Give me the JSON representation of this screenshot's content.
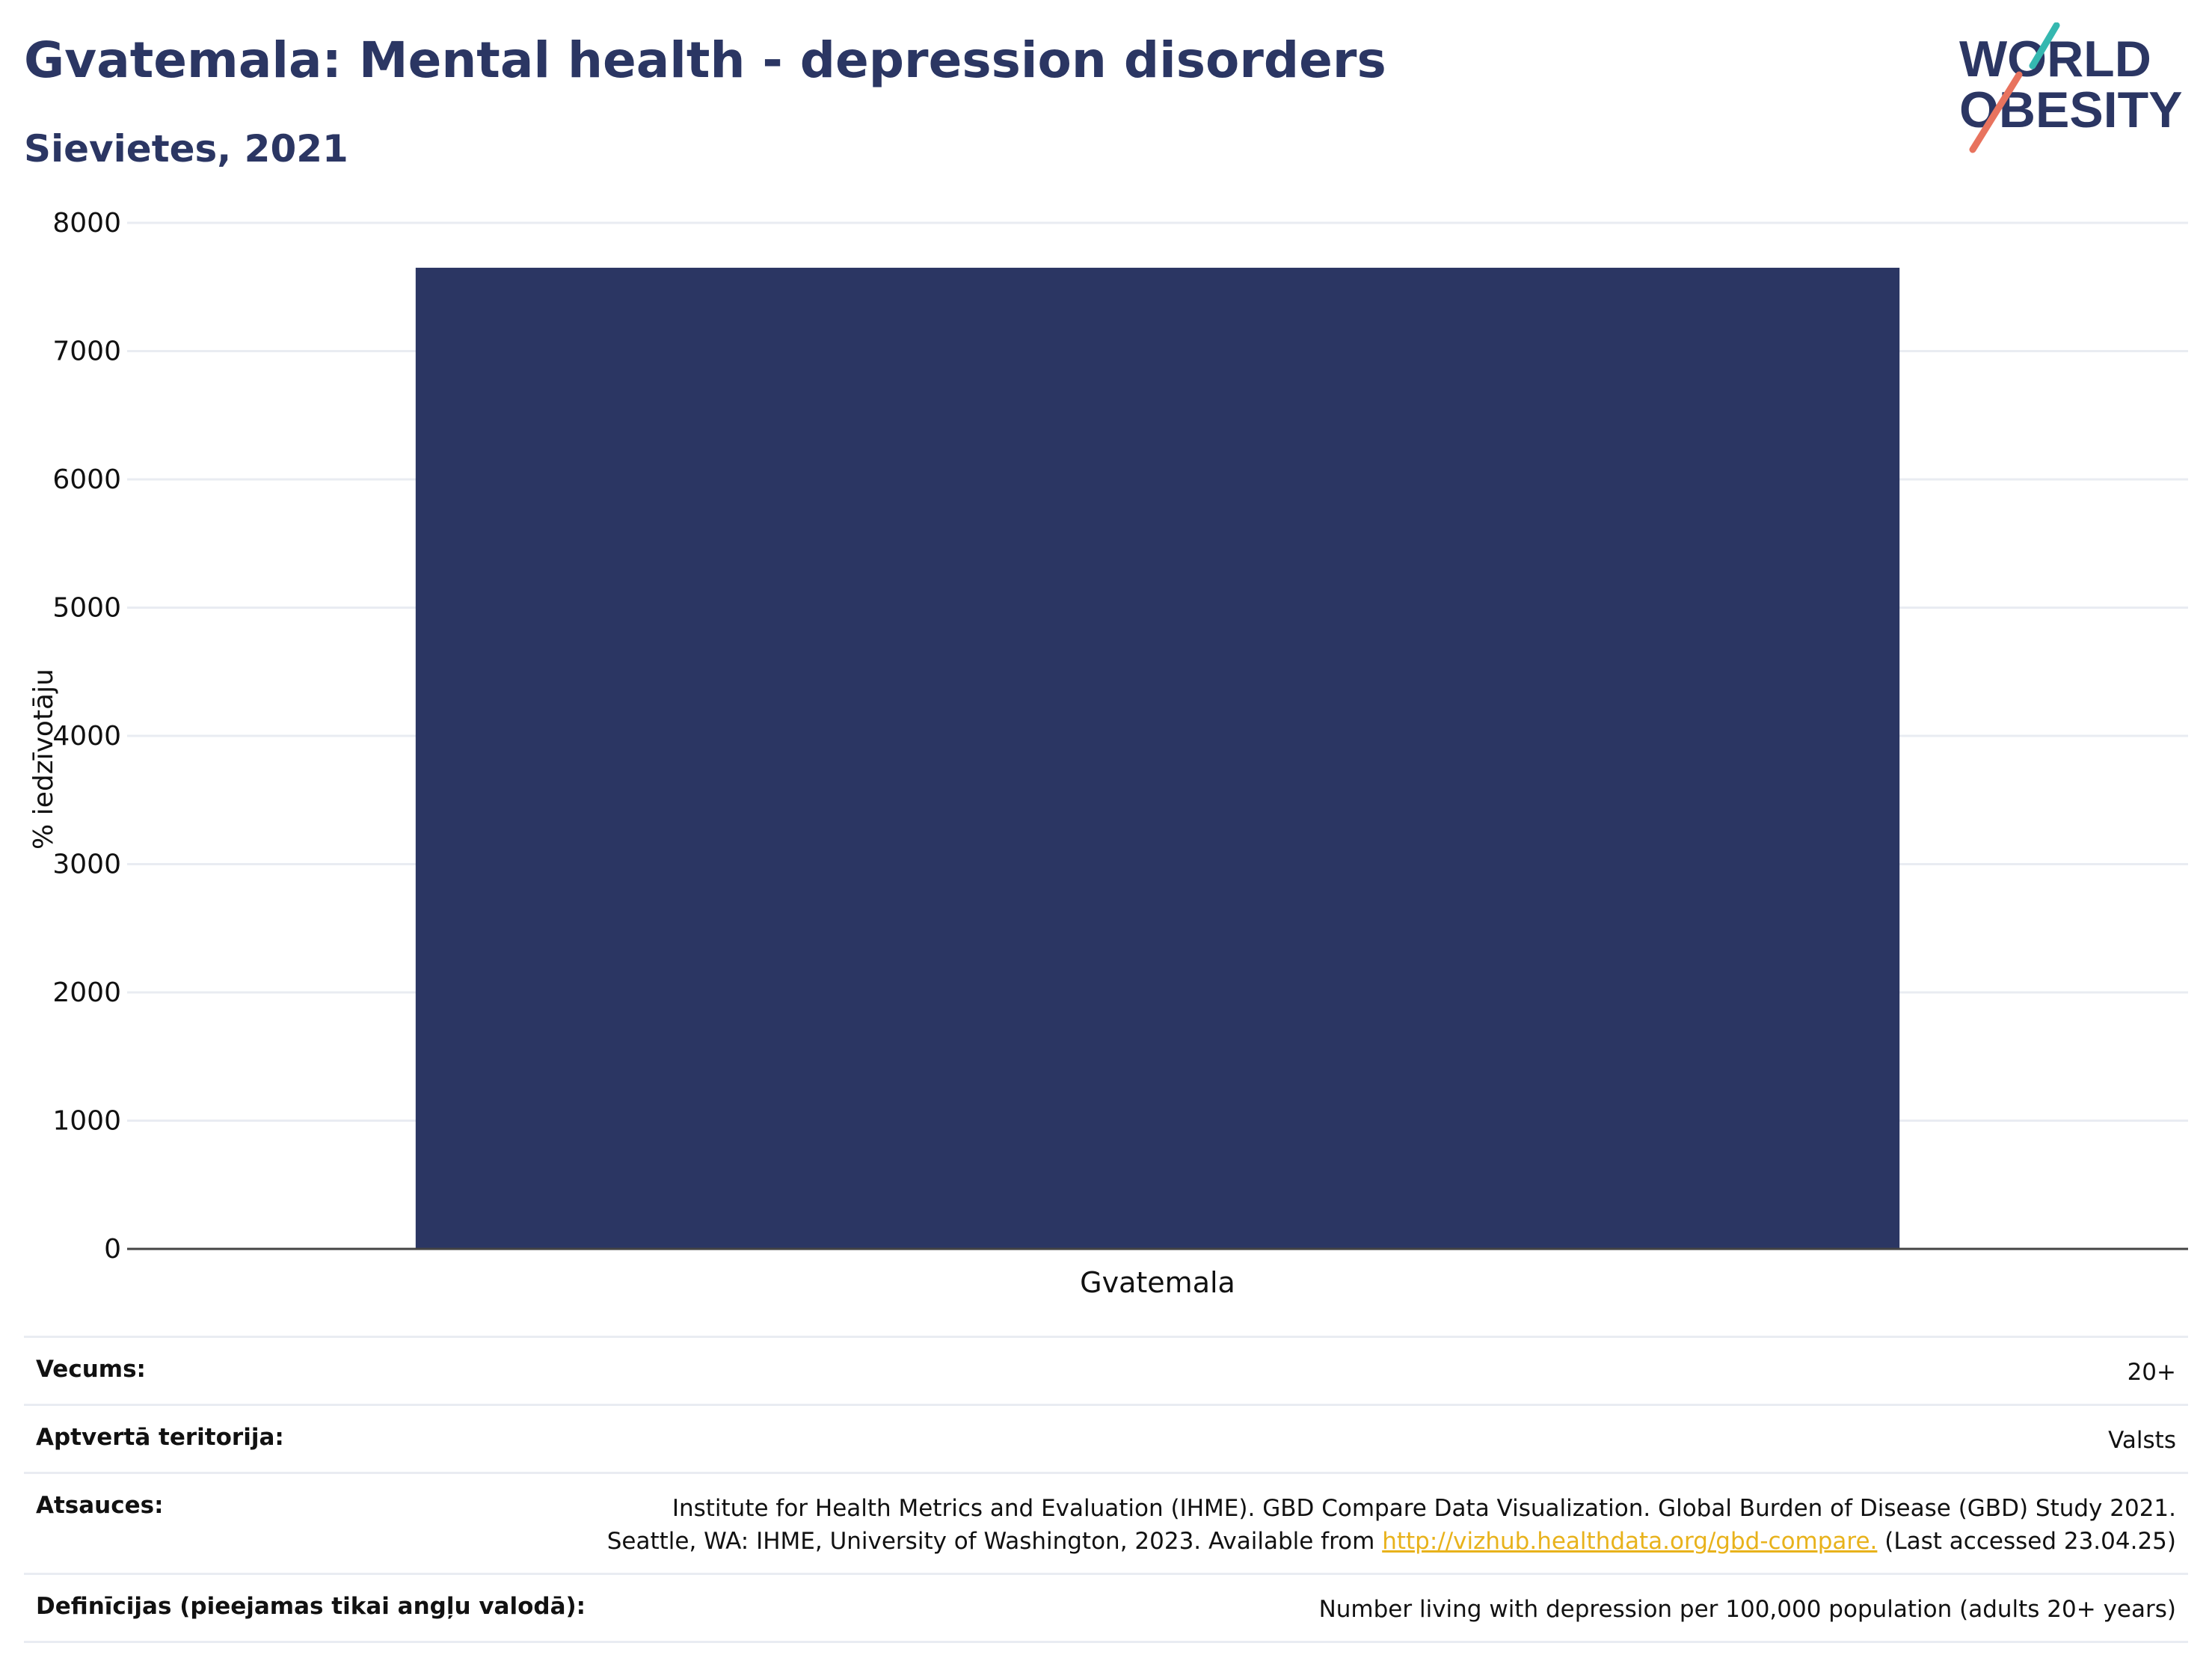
{
  "header": {
    "title": "Gvatemala: Mental health - depression disorders",
    "subtitle": "Sievietes, 2021"
  },
  "logo": {
    "line1": "WORLD",
    "line2": "OBESITY"
  },
  "colors": {
    "bar": "#2b3663",
    "text": "#2b3663",
    "grid": "#e9ecf2",
    "axis": "#444444",
    "link": "#e8b21b",
    "logo_teal": "#35b8b0",
    "logo_coral": "#e8735e"
  },
  "chart_data": {
    "type": "bar",
    "categories": [
      "Gvatemala"
    ],
    "values": [
      7650
    ],
    "ylabel": "% iedzīvotāju",
    "xlabel": "",
    "ylim": [
      0,
      8000
    ],
    "yticks": [
      0,
      1000,
      2000,
      3000,
      4000,
      5000,
      6000,
      7000,
      8000
    ],
    "grid": true,
    "legend": "none"
  },
  "meta": {
    "rows": [
      {
        "label": "Vecums:",
        "value": "20+"
      },
      {
        "label": "Aptvertā teritorija:",
        "value": "Valsts"
      }
    ],
    "sources": {
      "label": "Atsauces:",
      "line1": "Institute for Health Metrics and Evaluation (IHME). GBD Compare Data Visualization. Global Burden of Disease (GBD) Study 2021.",
      "line2_pre": "Seattle, WA: IHME, University of Washington, 2023. Available from ",
      "link": "http://vizhub.healthdata.org/gbd-compare.",
      "line2_post": " (Last accessed 23.04.25)"
    },
    "definitions": {
      "label": "Definīcijas (pieejamas tikai angļu valodā):",
      "value": "Number living with depression per 100,000 population (adults 20+ years)"
    }
  }
}
